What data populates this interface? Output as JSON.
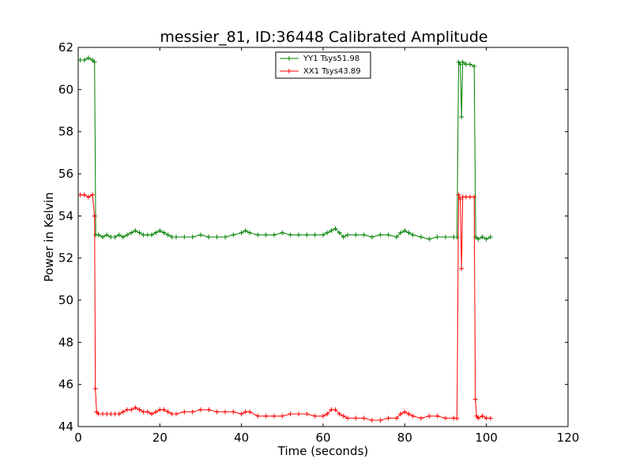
{
  "chart_data": {
    "type": "line",
    "title": "messier_81, ID:36448 Calibrated Amplitude",
    "xlabel": "Time (seconds)",
    "ylabel": "Power in Kelvin",
    "xlim": [
      0,
      120
    ],
    "ylim": [
      44,
      62
    ],
    "xticks": [
      "0",
      "20",
      "40",
      "60",
      "80",
      "100",
      "120"
    ],
    "yticks": [
      "44",
      "46",
      "48",
      "50",
      "52",
      "54",
      "56",
      "58",
      "60",
      "62"
    ],
    "grid": false,
    "legend_position": "top-center",
    "series": [
      {
        "name": "YY1 Tsys51.98",
        "color": "#008000",
        "marker": "+",
        "points": [
          [
            0.5,
            61.4
          ],
          [
            1.5,
            61.4
          ],
          [
            2.5,
            61.5
          ],
          [
            3.5,
            61.4
          ],
          [
            4.0,
            61.3
          ],
          [
            4.3,
            53.1
          ],
          [
            5,
            53.1
          ],
          [
            6,
            53.0
          ],
          [
            7,
            53.1
          ],
          [
            8,
            53.0
          ],
          [
            9,
            53.0
          ],
          [
            10,
            53.1
          ],
          [
            11,
            53.0
          ],
          [
            12,
            53.1
          ],
          [
            13,
            53.2
          ],
          [
            14,
            53.3
          ],
          [
            15,
            53.2
          ],
          [
            16,
            53.1
          ],
          [
            17,
            53.1
          ],
          [
            18,
            53.1
          ],
          [
            19,
            53.2
          ],
          [
            20,
            53.3
          ],
          [
            21,
            53.2
          ],
          [
            22,
            53.1
          ],
          [
            23,
            53.0
          ],
          [
            24,
            53.0
          ],
          [
            26,
            53.0
          ],
          [
            28,
            53.0
          ],
          [
            30,
            53.1
          ],
          [
            32,
            53.0
          ],
          [
            34,
            53.0
          ],
          [
            36,
            53.0
          ],
          [
            38,
            53.1
          ],
          [
            40,
            53.2
          ],
          [
            41,
            53.3
          ],
          [
            42,
            53.2
          ],
          [
            44,
            53.1
          ],
          [
            46,
            53.1
          ],
          [
            48,
            53.1
          ],
          [
            50,
            53.2
          ],
          [
            52,
            53.1
          ],
          [
            54,
            53.1
          ],
          [
            56,
            53.1
          ],
          [
            58,
            53.1
          ],
          [
            60,
            53.1
          ],
          [
            61,
            53.2
          ],
          [
            62,
            53.3
          ],
          [
            63,
            53.4
          ],
          [
            64,
            53.2
          ],
          [
            65,
            53.0
          ],
          [
            66,
            53.1
          ],
          [
            68,
            53.1
          ],
          [
            70,
            53.1
          ],
          [
            72,
            53.0
          ],
          [
            74,
            53.1
          ],
          [
            76,
            53.1
          ],
          [
            78,
            53.0
          ],
          [
            79,
            53.2
          ],
          [
            80,
            53.3
          ],
          [
            81,
            53.2
          ],
          [
            82,
            53.1
          ],
          [
            84,
            53.0
          ],
          [
            86,
            52.9
          ],
          [
            88,
            53.0
          ],
          [
            90,
            53.0
          ],
          [
            92,
            53.0
          ],
          [
            92.8,
            53.0
          ],
          [
            93.2,
            61.3
          ],
          [
            93.6,
            61.2
          ],
          [
            93.9,
            58.7
          ],
          [
            94.2,
            61.3
          ],
          [
            95,
            61.2
          ],
          [
            96,
            61.2
          ],
          [
            97,
            61.1
          ],
          [
            97.4,
            53.0
          ],
          [
            98,
            52.9
          ],
          [
            99,
            53.0
          ],
          [
            100,
            52.9
          ],
          [
            101,
            53.0
          ]
        ]
      },
      {
        "name": "XX1 Tsys43.89",
        "color": "#ff0000",
        "marker": "+",
        "points": [
          [
            0.5,
            55.0
          ],
          [
            1.5,
            55.0
          ],
          [
            2.5,
            54.9
          ],
          [
            3.5,
            55.0
          ],
          [
            4.0,
            54.0
          ],
          [
            4.2,
            45.8
          ],
          [
            4.5,
            44.7
          ],
          [
            5,
            44.6
          ],
          [
            6,
            44.6
          ],
          [
            7,
            44.6
          ],
          [
            8,
            44.6
          ],
          [
            9,
            44.6
          ],
          [
            10,
            44.6
          ],
          [
            11,
            44.7
          ],
          [
            12,
            44.8
          ],
          [
            13,
            44.8
          ],
          [
            14,
            44.9
          ],
          [
            15,
            44.8
          ],
          [
            16,
            44.7
          ],
          [
            17,
            44.7
          ],
          [
            18,
            44.6
          ],
          [
            19,
            44.7
          ],
          [
            20,
            44.8
          ],
          [
            21,
            44.8
          ],
          [
            22,
            44.7
          ],
          [
            23,
            44.6
          ],
          [
            24,
            44.6
          ],
          [
            26,
            44.7
          ],
          [
            28,
            44.7
          ],
          [
            30,
            44.8
          ],
          [
            32,
            44.8
          ],
          [
            34,
            44.7
          ],
          [
            36,
            44.7
          ],
          [
            38,
            44.7
          ],
          [
            40,
            44.6
          ],
          [
            41,
            44.7
          ],
          [
            42,
            44.7
          ],
          [
            44,
            44.5
          ],
          [
            46,
            44.5
          ],
          [
            48,
            44.5
          ],
          [
            50,
            44.5
          ],
          [
            52,
            44.6
          ],
          [
            54,
            44.6
          ],
          [
            56,
            44.6
          ],
          [
            58,
            44.5
          ],
          [
            60,
            44.5
          ],
          [
            61,
            44.6
          ],
          [
            62,
            44.8
          ],
          [
            63,
            44.8
          ],
          [
            64,
            44.6
          ],
          [
            65,
            44.5
          ],
          [
            66,
            44.4
          ],
          [
            68,
            44.4
          ],
          [
            70,
            44.4
          ],
          [
            72,
            44.3
          ],
          [
            74,
            44.3
          ],
          [
            76,
            44.4
          ],
          [
            78,
            44.4
          ],
          [
            79,
            44.6
          ],
          [
            80,
            44.7
          ],
          [
            81,
            44.6
          ],
          [
            82,
            44.5
          ],
          [
            84,
            44.4
          ],
          [
            86,
            44.5
          ],
          [
            88,
            44.5
          ],
          [
            90,
            44.4
          ],
          [
            92,
            44.4
          ],
          [
            92.8,
            44.4
          ],
          [
            93.2,
            55.0
          ],
          [
            93.6,
            54.8
          ],
          [
            93.9,
            51.5
          ],
          [
            94.2,
            54.9
          ],
          [
            95,
            54.9
          ],
          [
            96,
            54.9
          ],
          [
            97,
            54.9
          ],
          [
            97.3,
            45.3
          ],
          [
            97.6,
            44.5
          ],
          [
            98,
            44.4
          ],
          [
            99,
            44.5
          ],
          [
            100,
            44.4
          ],
          [
            101,
            44.4
          ]
        ]
      }
    ]
  }
}
